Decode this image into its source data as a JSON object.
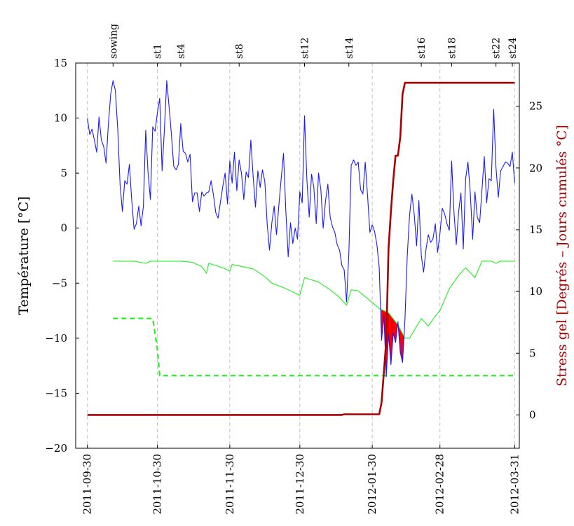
{
  "chart_data": {
    "type": "line",
    "title": "",
    "xlabel": "",
    "ylabel_left": "Température [°C]",
    "ylabel_right": "Stress gel [Degrés – Jours cumulés °C]",
    "ylim_left": [
      -20,
      15
    ],
    "ylim_right": [
      -2.7,
      28.5
    ],
    "xlim": [
      "2011-09-25",
      "2012-04-02"
    ],
    "x_ticks": [
      "2011-09-30",
      "2011-10-30",
      "2011-11-30",
      "2011-12-30",
      "2012-01-30",
      "2012-02-28",
      "2012-03-31"
    ],
    "y_ticks_left": [
      -20,
      -15,
      -10,
      -5,
      0,
      5,
      10,
      15
    ],
    "y_ticks_right": [
      0,
      5,
      10,
      15,
      20,
      25
    ],
    "grid": "vertical dashed at date ticks",
    "colors": {
      "temperature": "#1a1aff",
      "threshold": "#22ee22",
      "stress": "#aa0000",
      "frost_fill": "#ff0000",
      "right_axis": "#aa0000",
      "gridline": "#bbbbbb"
    },
    "stages": [
      {
        "label": "sowing",
        "x": "2011-10-11"
      },
      {
        "label": "st1",
        "x": "2011-10-30"
      },
      {
        "label": "st4",
        "x": "2011-11-09"
      },
      {
        "label": "st8",
        "x": "2011-12-04"
      },
      {
        "label": "st12",
        "x": "2012-01-01"
      },
      {
        "label": "st14",
        "x": "2012-01-20"
      },
      {
        "label": "st16",
        "x": "2012-02-20"
      },
      {
        "label": "st18",
        "x": "2012-03-04"
      },
      {
        "label": "st22",
        "x": "2012-03-23"
      },
      {
        "label": "st24",
        "x": "2012-03-30"
      }
    ],
    "series": [
      {
        "id": "temperature",
        "axis": "left",
        "style": "solid-thin",
        "points": [
          [
            "2011-09-30",
            10.0
          ],
          [
            "2011-10-01",
            8.5
          ],
          [
            "2011-10-02",
            9.0
          ],
          [
            "2011-10-03",
            8.0
          ],
          [
            "2011-10-04",
            6.9
          ],
          [
            "2011-10-05",
            10.1
          ],
          [
            "2011-10-06",
            8.0
          ],
          [
            "2011-10-07",
            7.4
          ],
          [
            "2011-10-08",
            5.9
          ],
          [
            "2011-10-09",
            9.4
          ],
          [
            "2011-10-10",
            12.2
          ],
          [
            "2011-10-11",
            13.4
          ],
          [
            "2011-10-12",
            12.5
          ],
          [
            "2011-10-13",
            9.0
          ],
          [
            "2011-10-14",
            4.0
          ],
          [
            "2011-10-15",
            1.5
          ],
          [
            "2011-10-16",
            4.3
          ],
          [
            "2011-10-17",
            4.0
          ],
          [
            "2011-10-18",
            5.8
          ],
          [
            "2011-10-19",
            2.5
          ],
          [
            "2011-10-20",
            -0.1
          ],
          [
            "2011-10-21",
            0.4
          ],
          [
            "2011-10-22",
            2.0
          ],
          [
            "2011-10-23",
            0.2
          ],
          [
            "2011-10-24",
            2.0
          ],
          [
            "2011-10-25",
            8.9
          ],
          [
            "2011-10-26",
            5.0
          ],
          [
            "2011-10-27",
            2.6
          ],
          [
            "2011-10-28",
            9.2
          ],
          [
            "2011-10-29",
            8.8
          ],
          [
            "2011-10-30",
            10.5
          ],
          [
            "2011-10-31",
            11.8
          ],
          [
            "2011-11-01",
            5.2
          ],
          [
            "2011-11-02",
            9.0
          ],
          [
            "2011-11-03",
            13.4
          ],
          [
            "2011-11-04",
            11.0
          ],
          [
            "2011-11-05",
            8.5
          ],
          [
            "2011-11-06",
            5.6
          ],
          [
            "2011-11-07",
            5.3
          ],
          [
            "2011-11-08",
            5.8
          ],
          [
            "2011-11-09",
            9.5
          ],
          [
            "2011-11-10",
            7.0
          ],
          [
            "2011-11-11",
            6.8
          ],
          [
            "2011-11-12",
            6.0
          ],
          [
            "2011-11-13",
            6.7
          ],
          [
            "2011-11-14",
            2.4
          ],
          [
            "2011-11-15",
            3.2
          ],
          [
            "2011-11-16",
            3.2
          ],
          [
            "2011-11-17",
            1.5
          ],
          [
            "2011-11-18",
            3.3
          ],
          [
            "2011-11-19",
            2.9
          ],
          [
            "2011-11-20",
            3.2
          ],
          [
            "2011-11-21",
            3.3
          ],
          [
            "2011-11-22",
            4.3
          ],
          [
            "2011-11-23",
            3.0
          ],
          [
            "2011-11-24",
            1.4
          ],
          [
            "2011-11-25",
            0.9
          ],
          [
            "2011-11-26",
            2.4
          ],
          [
            "2011-11-27",
            3.8
          ],
          [
            "2011-11-28",
            5.0
          ],
          [
            "2011-11-29",
            2.2
          ],
          [
            "2011-11-30",
            6.1
          ],
          [
            "2011-12-01",
            4.1
          ],
          [
            "2011-12-02",
            6.9
          ],
          [
            "2011-12-03",
            3.4
          ],
          [
            "2011-12-04",
            6.2
          ],
          [
            "2011-12-05",
            5.0
          ],
          [
            "2011-12-06",
            2.6
          ],
          [
            "2011-12-07",
            5.1
          ],
          [
            "2011-12-08",
            4.6
          ],
          [
            "2011-12-09",
            8.0
          ],
          [
            "2011-12-10",
            4.7
          ],
          [
            "2011-12-11",
            1.9
          ],
          [
            "2011-12-12",
            5.2
          ],
          [
            "2011-12-13",
            3.7
          ],
          [
            "2011-12-14",
            5.3
          ],
          [
            "2011-12-15",
            4.2
          ],
          [
            "2011-12-16",
            0.4
          ],
          [
            "2011-12-17",
            -2.0
          ],
          [
            "2011-12-18",
            0.5
          ],
          [
            "2011-12-19",
            2.0
          ],
          [
            "2011-12-20",
            -0.6
          ],
          [
            "2011-12-21",
            2.0
          ],
          [
            "2011-12-22",
            4.5
          ],
          [
            "2011-12-23",
            6.8
          ],
          [
            "2011-12-24",
            1.6
          ],
          [
            "2011-12-25",
            -2.6
          ],
          [
            "2011-12-26",
            0.5
          ],
          [
            "2011-12-27",
            -1.4
          ],
          [
            "2011-12-28",
            0.0
          ],
          [
            "2011-12-29",
            -1.0
          ],
          [
            "2011-12-30",
            3.3
          ],
          [
            "2011-12-31",
            2.3
          ],
          [
            "2012-01-01",
            10.2
          ],
          [
            "2012-01-02",
            4.5
          ],
          [
            "2012-01-03",
            1.0
          ],
          [
            "2012-01-04",
            4.9
          ],
          [
            "2012-01-05",
            3.7
          ],
          [
            "2012-01-06",
            0.4
          ],
          [
            "2012-01-07",
            5.0
          ],
          [
            "2012-01-08",
            3.5
          ],
          [
            "2012-01-09",
            0.0
          ],
          [
            "2012-01-10",
            2.5
          ],
          [
            "2012-01-11",
            4.0
          ],
          [
            "2012-01-12",
            1.0
          ],
          [
            "2012-01-13",
            0.1
          ],
          [
            "2012-01-14",
            -0.4
          ],
          [
            "2012-01-15",
            -1.5
          ],
          [
            "2012-01-16",
            -2.0
          ],
          [
            "2012-01-17",
            -3.4
          ],
          [
            "2012-01-18",
            -3.8
          ],
          [
            "2012-01-19",
            -6.7
          ],
          [
            "2012-01-20",
            -2.2
          ],
          [
            "2012-01-21",
            5.7
          ],
          [
            "2012-01-22",
            6.2
          ],
          [
            "2012-01-23",
            5.7
          ],
          [
            "2012-01-24",
            6.0
          ],
          [
            "2012-01-25",
            3.5
          ],
          [
            "2012-01-26",
            3.1
          ],
          [
            "2012-01-27",
            6.0
          ],
          [
            "2012-01-28",
            3.0
          ],
          [
            "2012-01-29",
            -0.4
          ],
          [
            "2012-01-30",
            0.3
          ],
          [
            "2012-01-31",
            -0.3
          ],
          [
            "2012-02-01",
            -1.5
          ],
          [
            "2012-02-02",
            -3.6
          ],
          [
            "2012-02-03",
            -10.2
          ],
          [
            "2012-02-04",
            -7.9
          ],
          [
            "2012-02-05",
            -13.5
          ],
          [
            "2012-02-06",
            -9.6
          ],
          [
            "2012-02-07",
            -12.4
          ],
          [
            "2012-02-08",
            -9.5
          ],
          [
            "2012-02-09",
            -10.4
          ],
          [
            "2012-02-10",
            -8.5
          ],
          [
            "2012-02-11",
            -11.3
          ],
          [
            "2012-02-12",
            -12.2
          ],
          [
            "2012-02-13",
            -8.3
          ],
          [
            "2012-02-14",
            -2.5
          ],
          [
            "2012-02-15",
            1.2
          ],
          [
            "2012-02-16",
            3.1
          ],
          [
            "2012-02-17",
            1.2
          ],
          [
            "2012-02-18",
            -1.6
          ],
          [
            "2012-02-19",
            2.5
          ],
          [
            "2012-02-20",
            -2.5
          ],
          [
            "2012-02-21",
            -4.0
          ],
          [
            "2012-02-22",
            -2.0
          ],
          [
            "2012-02-23",
            -0.6
          ],
          [
            "2012-02-24",
            -1.3
          ],
          [
            "2012-02-25",
            -1.0
          ],
          [
            "2012-02-26",
            0.4
          ],
          [
            "2012-02-27",
            -2.2
          ],
          [
            "2012-02-28",
            -0.5
          ],
          [
            "2012-02-29",
            1.8
          ],
          [
            "2012-03-01",
            1.3
          ],
          [
            "2012-03-02",
            0.4
          ],
          [
            "2012-03-03",
            -0.2
          ],
          [
            "2012-03-04",
            6.1
          ],
          [
            "2012-03-05",
            1.5
          ],
          [
            "2012-03-06",
            -1.5
          ],
          [
            "2012-03-07",
            1.5
          ],
          [
            "2012-03-08",
            3.2
          ],
          [
            "2012-03-09",
            -1.9
          ],
          [
            "2012-03-10",
            4.5
          ],
          [
            "2012-03-11",
            6.0
          ],
          [
            "2012-03-12",
            3.2
          ],
          [
            "2012-03-13",
            -1.0
          ],
          [
            "2012-03-14",
            3.3
          ],
          [
            "2012-03-15",
            1.0
          ],
          [
            "2012-03-16",
            0.5
          ],
          [
            "2012-03-17",
            3.5
          ],
          [
            "2012-03-18",
            6.5
          ],
          [
            "2012-03-19",
            2.3
          ],
          [
            "2012-03-20",
            4.5
          ],
          [
            "2012-03-21",
            4.3
          ],
          [
            "2012-03-22",
            10.8
          ],
          [
            "2012-03-23",
            5.5
          ],
          [
            "2012-03-24",
            2.8
          ],
          [
            "2012-03-25",
            5.2
          ],
          [
            "2012-03-26",
            5.6
          ],
          [
            "2012-03-27",
            6.0
          ],
          [
            "2012-03-28",
            5.9
          ],
          [
            "2012-03-29",
            5.6
          ],
          [
            "2012-03-30",
            6.9
          ],
          [
            "2012-03-31",
            4.1
          ]
        ]
      },
      {
        "id": "threshold",
        "axis": "left",
        "style": "solid-thin",
        "points": [
          [
            "2011-10-11",
            -3.0
          ],
          [
            "2011-10-20",
            -3.0
          ],
          [
            "2011-10-25",
            -3.2
          ],
          [
            "2011-10-27",
            -3.0
          ],
          [
            "2011-11-09",
            -3.0
          ],
          [
            "2011-11-14",
            -3.1
          ],
          [
            "2011-11-18",
            -3.5
          ],
          [
            "2011-11-20",
            -4.1
          ],
          [
            "2011-11-21",
            -3.2
          ],
          [
            "2011-11-27",
            -3.6
          ],
          [
            "2011-11-30",
            -3.9
          ],
          [
            "2011-12-01",
            -3.3
          ],
          [
            "2011-12-10",
            -3.7
          ],
          [
            "2011-12-15",
            -4.4
          ],
          [
            "2011-12-18",
            -5.0
          ],
          [
            "2011-12-23",
            -5.4
          ],
          [
            "2011-12-28",
            -5.9
          ],
          [
            "2011-12-30",
            -6.1
          ],
          [
            "2012-01-01",
            -4.5
          ],
          [
            "2012-01-07",
            -4.9
          ],
          [
            "2012-01-12",
            -5.6
          ],
          [
            "2012-01-16",
            -6.3
          ],
          [
            "2012-01-19",
            -7.0
          ],
          [
            "2012-01-21",
            -5.6
          ],
          [
            "2012-01-24",
            -5.7
          ],
          [
            "2012-01-28",
            -6.4
          ],
          [
            "2012-02-02",
            -7.3
          ],
          [
            "2012-02-06",
            -7.7
          ],
          [
            "2012-02-10",
            -8.8
          ],
          [
            "2012-02-13",
            -10.0
          ],
          [
            "2012-02-15",
            -10.0
          ],
          [
            "2012-02-20",
            -8.2
          ],
          [
            "2012-02-23",
            -8.9
          ],
          [
            "2012-02-26",
            -8.0
          ],
          [
            "2012-02-28",
            -7.5
          ],
          [
            "2012-03-03",
            -5.5
          ],
          [
            "2012-03-07",
            -4.3
          ],
          [
            "2012-03-10",
            -3.6
          ],
          [
            "2012-03-14",
            -4.5
          ],
          [
            "2012-03-17",
            -3.0
          ],
          [
            "2012-03-21",
            -3.0
          ],
          [
            "2012-03-23",
            -3.2
          ],
          [
            "2012-03-25",
            -3.0
          ],
          [
            "2012-03-31",
            -3.0
          ]
        ]
      },
      {
        "id": "threshold_dashed",
        "axis": "left",
        "style": "dashed-thick",
        "points": [
          [
            "2011-10-11",
            -8.2
          ],
          [
            "2011-10-28",
            -8.2
          ],
          [
            "2011-10-30",
            -11.0
          ],
          [
            "2011-10-31",
            -13.4
          ],
          [
            "2012-03-31",
            -13.4
          ]
        ]
      },
      {
        "id": "stress",
        "axis": "right",
        "style": "solid-thick",
        "points": [
          [
            "2011-09-30",
            0.0
          ],
          [
            "2012-01-17",
            0.0
          ],
          [
            "2012-01-18",
            0.05
          ],
          [
            "2012-02-02",
            0.05
          ],
          [
            "2012-02-03",
            1.0
          ],
          [
            "2012-02-04",
            3.5
          ],
          [
            "2012-02-05",
            6.0
          ],
          [
            "2012-02-06",
            13.5
          ],
          [
            "2012-02-07",
            16.5
          ],
          [
            "2012-02-08",
            19.0
          ],
          [
            "2012-02-09",
            21.0
          ],
          [
            "2012-02-10",
            21.0
          ],
          [
            "2012-02-11",
            22.5
          ],
          [
            "2012-02-12",
            26.0
          ],
          [
            "2012-02-13",
            26.9
          ],
          [
            "2012-03-31",
            26.9
          ]
        ]
      }
    ],
    "frost_regions": [
      {
        "start": "2012-02-03",
        "end": "2012-02-06"
      },
      {
        "start": "2012-02-06",
        "end": "2012-02-08"
      },
      {
        "start": "2012-02-08",
        "end": "2012-02-10"
      },
      {
        "start": "2012-02-10",
        "end": "2012-02-13"
      }
    ]
  }
}
